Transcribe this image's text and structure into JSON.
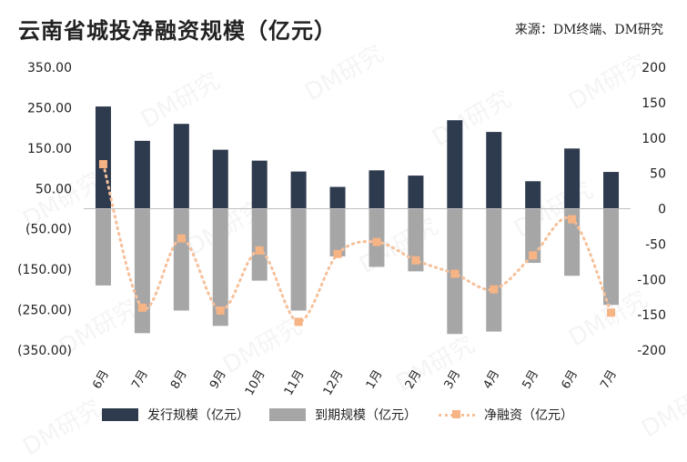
{
  "title": "云南省城投净融资规模（亿元）",
  "source": "来源：DM终端、DM研究",
  "watermark": "DM研究",
  "colors": {
    "issuance": "#2e3a4d",
    "maturity": "#a6a6a6",
    "net": "#f6b384"
  },
  "chart_data": {
    "type": "bar",
    "categories": [
      "6月",
      "7月",
      "8月",
      "9月",
      "10月",
      "11月",
      "12月",
      "1月",
      "2月",
      "3月",
      "4月",
      "5月",
      "6月",
      "7月"
    ],
    "left_axis": {
      "ylim": [
        -350,
        350
      ],
      "ticks": [
        350,
        250,
        150,
        50,
        -50,
        -150,
        -250,
        -350
      ],
      "tick_labels": [
        "350.00",
        "250.00",
        "150.00",
        "50.00",
        "(50.00)",
        "(150.00)",
        "(250.00)",
        "(350.00)"
      ]
    },
    "right_axis": {
      "ylim": [
        -200,
        200
      ],
      "ticks": [
        200,
        150,
        100,
        50,
        0,
        -50,
        -100,
        -150,
        -200
      ],
      "tick_labels": [
        "200",
        "150",
        "100",
        "50",
        "0",
        "-50",
        "-100",
        "-150",
        "-200"
      ]
    },
    "series": [
      {
        "name": "发行规模（亿元）",
        "type": "bar",
        "axis": "left",
        "values": [
          253,
          168,
          210,
          146,
          119,
          92,
          54,
          95,
          82,
          219,
          190,
          68,
          149,
          91
        ]
      },
      {
        "name": "到期规模（亿元）",
        "type": "bar",
        "axis": "left",
        "values": [
          -190,
          -308,
          -252,
          -290,
          -178,
          -252,
          -118,
          -144,
          -155,
          -310,
          -304,
          -134,
          -166,
          -238
        ]
      },
      {
        "name": "净融资（亿元）",
        "type": "line",
        "axis": "right",
        "values": [
          63,
          -140,
          -42,
          -144,
          -59,
          -160,
          -64,
          -47,
          -73,
          -92,
          -114,
          -66,
          -15,
          -147
        ]
      }
    ],
    "grid": false,
    "legend": "bottom"
  }
}
